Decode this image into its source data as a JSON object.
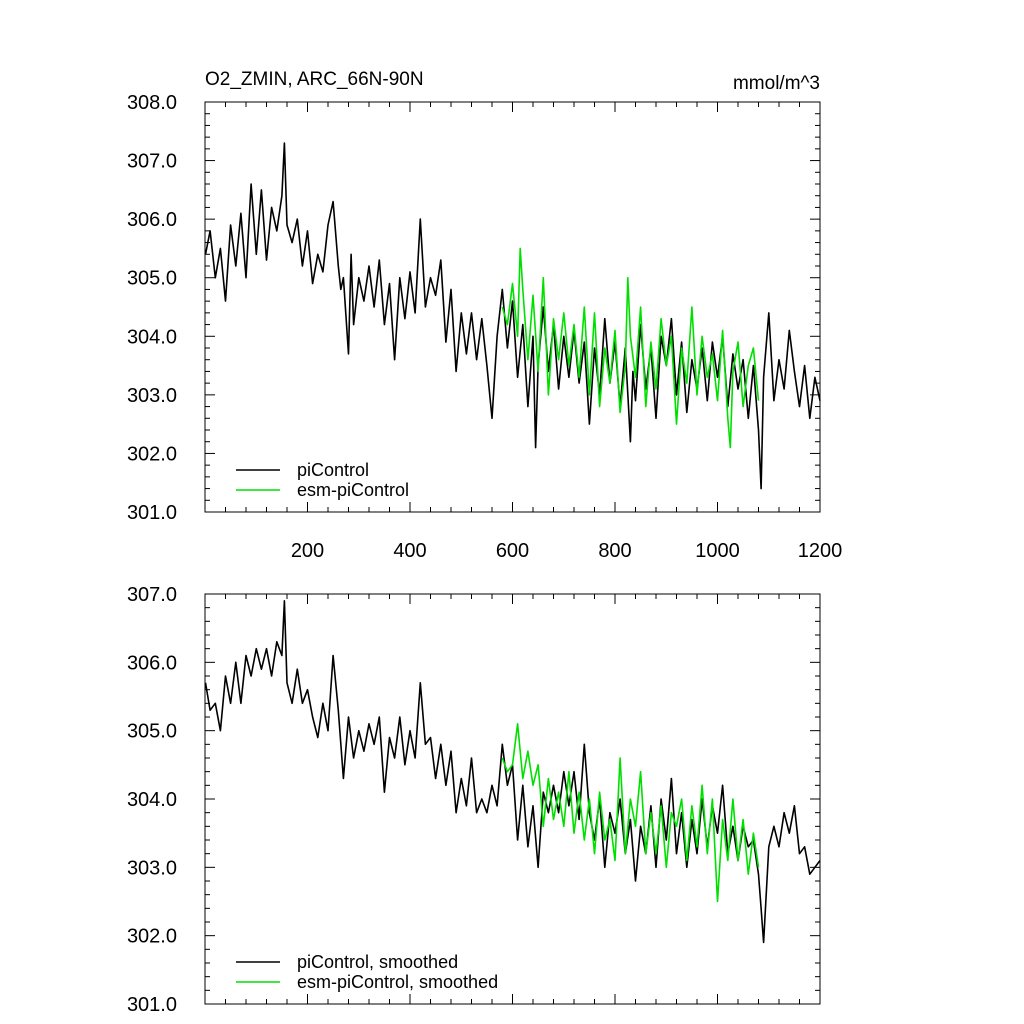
{
  "chart_data": [
    {
      "type": "line",
      "title": "O2_ZMIN, ARC_66N-90N",
      "units": "mmol/m^3",
      "xlim": [
        0,
        1200
      ],
      "ylim": [
        301.0,
        308.0
      ],
      "xticks": [
        200,
        400,
        600,
        800,
        1000,
        1200
      ],
      "yticks": [
        301.0,
        302.0,
        303.0,
        304.0,
        305.0,
        306.0,
        307.0,
        308.0
      ],
      "ytick_labels": [
        "301.0",
        "302.0",
        "303.0",
        "304.0",
        "305.0",
        "306.0",
        "307.0",
        "308.0"
      ],
      "legend_location": "bottom-left",
      "series": [
        {
          "name": "piControl",
          "color": "#000000",
          "x": [
            1,
            10,
            20,
            30,
            40,
            50,
            60,
            70,
            80,
            90,
            100,
            110,
            120,
            130,
            140,
            150,
            155,
            160,
            170,
            180,
            190,
            200,
            210,
            220,
            230,
            240,
            250,
            260,
            265,
            270,
            280,
            285,
            290,
            300,
            310,
            320,
            330,
            340,
            350,
            360,
            370,
            380,
            390,
            400,
            410,
            420,
            430,
            440,
            450,
            460,
            470,
            480,
            490,
            500,
            510,
            520,
            530,
            540,
            550,
            560,
            570,
            580,
            590,
            600,
            610,
            620,
            630,
            640,
            645,
            650,
            660,
            670,
            680,
            690,
            700,
            710,
            720,
            730,
            740,
            750,
            760,
            770,
            780,
            790,
            800,
            810,
            820,
            830,
            835,
            840,
            850,
            860,
            870,
            880,
            890,
            900,
            910,
            920,
            930,
            940,
            950,
            960,
            970,
            980,
            990,
            1000,
            1010,
            1020,
            1030,
            1040,
            1050,
            1060,
            1070,
            1080,
            1085,
            1090,
            1100,
            1110,
            1120,
            1130,
            1140,
            1150,
            1160,
            1170,
            1180,
            1190,
            1200
          ],
          "values": [
            305.4,
            305.8,
            305.0,
            305.5,
            304.6,
            305.9,
            305.2,
            306.1,
            305.0,
            306.6,
            305.4,
            306.5,
            305.3,
            306.2,
            305.8,
            306.4,
            307.3,
            305.9,
            305.6,
            306.0,
            305.2,
            305.8,
            304.9,
            305.4,
            305.1,
            305.9,
            306.3,
            305.2,
            304.8,
            305.0,
            303.7,
            305.4,
            304.2,
            305.0,
            304.6,
            305.2,
            304.5,
            305.3,
            304.2,
            304.9,
            303.6,
            305.0,
            304.3,
            305.1,
            304.4,
            306.0,
            304.5,
            305.0,
            304.7,
            305.3,
            303.9,
            304.8,
            303.4,
            304.4,
            303.7,
            304.4,
            303.6,
            304.3,
            303.5,
            302.6,
            304.0,
            304.8,
            303.8,
            304.6,
            303.3,
            304.2,
            302.8,
            304.0,
            302.1,
            303.5,
            304.5,
            303.4,
            304.2,
            303.1,
            304.0,
            303.3,
            304.1,
            303.2,
            303.9,
            302.5,
            303.8,
            303.0,
            304.3,
            303.2,
            303.9,
            302.8,
            303.8,
            302.2,
            303.4,
            302.9,
            304.2,
            303.1,
            303.8,
            302.6,
            304.0,
            303.5,
            304.3,
            303.0,
            303.9,
            302.7,
            303.6,
            303.1,
            303.8,
            302.9,
            303.9,
            303.3,
            304.0,
            302.8,
            303.7,
            303.1,
            303.6,
            302.6,
            303.5,
            302.4,
            301.4,
            303.3,
            304.4,
            302.9,
            303.6,
            303.1,
            304.1,
            303.4,
            302.8,
            303.5,
            302.6,
            303.3,
            302.9
          ]
        },
        {
          "name": "esm-piControl",
          "color": "#00e000",
          "x": [
            580,
            590,
            600,
            610,
            615,
            620,
            630,
            640,
            650,
            660,
            670,
            680,
            690,
            700,
            710,
            720,
            730,
            740,
            750,
            760,
            770,
            780,
            790,
            800,
            810,
            820,
            825,
            830,
            840,
            850,
            860,
            870,
            880,
            890,
            900,
            910,
            920,
            930,
            940,
            950,
            960,
            970,
            980,
            990,
            1000,
            1010,
            1020,
            1025,
            1030,
            1040,
            1050,
            1060,
            1070,
            1080
          ],
          "values": [
            304.5,
            304.2,
            304.9,
            304.0,
            305.5,
            304.8,
            303.6,
            304.7,
            303.4,
            305.0,
            303.0,
            304.3,
            303.6,
            304.4,
            303.5,
            304.2,
            303.3,
            304.5,
            303.0,
            304.4,
            302.8,
            303.8,
            303.2,
            304.1,
            302.7,
            303.5,
            305.0,
            304.0,
            303.3,
            304.5,
            302.8,
            303.9,
            303.1,
            304.3,
            303.5,
            304.0,
            302.5,
            303.8,
            303.2,
            304.5,
            303.0,
            304.0,
            303.3,
            303.7,
            302.9,
            304.1,
            302.6,
            302.1,
            303.4,
            303.9,
            302.8,
            303.5,
            303.8,
            302.9
          ]
        }
      ]
    },
    {
      "type": "line",
      "title": "",
      "xlim": [
        0,
        1200
      ],
      "ylim": [
        301.0,
        307.0
      ],
      "xticks": [
        200,
        400,
        600,
        800,
        1000,
        1200
      ],
      "yticks": [
        301.0,
        302.0,
        303.0,
        304.0,
        305.0,
        306.0,
        307.0
      ],
      "ytick_labels": [
        "301.0",
        "302.0",
        "303.0",
        "304.0",
        "305.0",
        "306.0",
        "307.0"
      ],
      "legend_location": "bottom-left",
      "series": [
        {
          "name": "piControl, smoothed",
          "color": "#000000",
          "x": [
            1,
            10,
            20,
            30,
            40,
            50,
            60,
            70,
            80,
            90,
            100,
            110,
            120,
            130,
            140,
            150,
            155,
            160,
            170,
            180,
            190,
            200,
            210,
            220,
            230,
            240,
            250,
            260,
            270,
            280,
            290,
            300,
            310,
            320,
            330,
            340,
            350,
            360,
            370,
            380,
            390,
            400,
            410,
            420,
            430,
            440,
            450,
            460,
            470,
            480,
            490,
            500,
            510,
            520,
            530,
            540,
            550,
            560,
            570,
            580,
            590,
            600,
            610,
            620,
            630,
            640,
            650,
            660,
            670,
            680,
            690,
            700,
            710,
            720,
            730,
            740,
            750,
            760,
            770,
            780,
            790,
            800,
            810,
            820,
            830,
            840,
            850,
            860,
            870,
            880,
            890,
            900,
            910,
            920,
            930,
            940,
            950,
            960,
            970,
            980,
            990,
            1000,
            1010,
            1020,
            1030,
            1040,
            1050,
            1060,
            1070,
            1080,
            1085,
            1090,
            1100,
            1110,
            1120,
            1130,
            1140,
            1150,
            1160,
            1170,
            1180,
            1190,
            1200
          ],
          "values": [
            305.7,
            305.3,
            305.4,
            305.0,
            305.8,
            305.4,
            306.0,
            305.4,
            306.1,
            305.8,
            306.2,
            305.9,
            306.2,
            305.8,
            306.3,
            306.1,
            306.9,
            305.7,
            305.4,
            305.9,
            305.4,
            305.6,
            305.2,
            304.9,
            305.4,
            305.0,
            306.1,
            305.3,
            304.3,
            305.2,
            304.6,
            305.0,
            304.7,
            305.1,
            304.8,
            305.2,
            304.1,
            304.9,
            304.6,
            305.2,
            304.5,
            305.0,
            304.6,
            305.7,
            304.8,
            304.9,
            304.3,
            304.8,
            304.2,
            304.7,
            303.8,
            304.3,
            303.9,
            304.6,
            303.8,
            304.0,
            303.8,
            304.2,
            303.9,
            304.8,
            304.2,
            304.5,
            303.4,
            304.2,
            303.3,
            303.9,
            303.0,
            304.1,
            303.8,
            304.2,
            303.8,
            304.4,
            303.9,
            304.4,
            303.7,
            304.8,
            303.8,
            303.4,
            304.0,
            303.0,
            303.8,
            303.5,
            304.0,
            303.2,
            303.7,
            302.8,
            303.6,
            303.2,
            303.9,
            303.0,
            304.0,
            303.4,
            304.3,
            303.2,
            303.8,
            303.0,
            303.7,
            303.2,
            304.0,
            303.3,
            303.9,
            303.5,
            304.2,
            303.2,
            303.6,
            303.1,
            303.6,
            303.3,
            303.4,
            302.9,
            302.4,
            301.9,
            303.3,
            303.6,
            303.3,
            303.8,
            303.5,
            303.9,
            303.2,
            303.3,
            302.9,
            303.0,
            303.1
          ]
        },
        {
          "name": "esm-piControl, smoothed",
          "color": "#00e000",
          "x": [
            580,
            590,
            600,
            610,
            620,
            630,
            640,
            650,
            660,
            670,
            680,
            690,
            700,
            710,
            720,
            730,
            740,
            750,
            760,
            770,
            780,
            790,
            800,
            810,
            820,
            830,
            840,
            850,
            860,
            870,
            880,
            890,
            900,
            910,
            920,
            930,
            940,
            950,
            960,
            970,
            980,
            990,
            1000,
            1010,
            1020,
            1030,
            1040,
            1050,
            1060,
            1070,
            1080
          ],
          "values": [
            304.6,
            304.4,
            304.5,
            305.1,
            304.3,
            304.7,
            304.2,
            304.5,
            303.6,
            304.3,
            303.7,
            304.1,
            303.6,
            304.4,
            303.5,
            304.1,
            303.4,
            304.0,
            303.2,
            304.1,
            303.4,
            303.7,
            303.1,
            304.6,
            303.2,
            304.0,
            303.6,
            304.4,
            303.2,
            303.8,
            303.2,
            303.9,
            303.0,
            303.8,
            303.6,
            304.0,
            303.1,
            303.9,
            303.3,
            304.2,
            303.2,
            304.0,
            302.5,
            303.7,
            303.1,
            304.0,
            303.1,
            303.7,
            302.9,
            303.5,
            303.0
          ]
        }
      ]
    }
  ]
}
